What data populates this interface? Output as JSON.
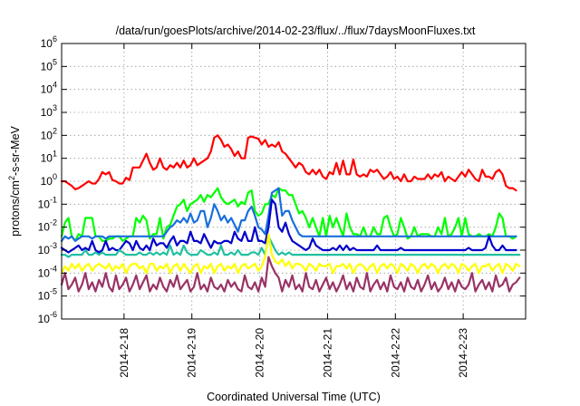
{
  "chart_data": {
    "type": "line",
    "title": "/data/run/goesPlots/archive/2014-02-23/flux/../flux/7daysMoonFluxes.txt",
    "xlabel": "Coordinated Universal Time (UTC)",
    "ylabel": {
      "prefix": "protons/cm",
      "sup": "2",
      "suffix": "-s-sr-MeV"
    },
    "y_scale": "log",
    "ylim_exp": [
      -6,
      6
    ],
    "y_tick_exponents": [
      6,
      5,
      4,
      3,
      2,
      1,
      0,
      -1,
      -2,
      -3,
      -4,
      -5,
      -6
    ],
    "y_tick_base": "10",
    "xlim_days": [
      17.08,
      23.92
    ],
    "x_ticks": [
      {
        "day": 18,
        "label": "2014-2-18"
      },
      {
        "day": 19,
        "label": "2014-2-19"
      },
      {
        "day": 20,
        "label": "2014-2-20"
      },
      {
        "day": 21,
        "label": "2014-2-21"
      },
      {
        "day": 22,
        "label": "2014-2-22"
      },
      {
        "day": 23,
        "label": "2014-2-23"
      }
    ],
    "grid": true,
    "x_unit_note": "x values are day of month, February 2014 (UTC); y values are log10 of flux",
    "series": [
      {
        "color": "#ff0000",
        "x_start": 17.08,
        "x_step": 0.05,
        "log10_y": [
          0.0,
          0.0,
          -0.1,
          -0.2,
          -0.35,
          -0.3,
          -0.2,
          -0.1,
          0.0,
          -0.1,
          -0.1,
          0.1,
          0.4,
          0.3,
          0.4,
          0.05,
          0.0,
          -0.1,
          -0.1,
          0.15,
          0.05,
          0.6,
          0.6,
          0.6,
          0.9,
          1.2,
          0.8,
          0.5,
          0.6,
          1.0,
          0.6,
          0.5,
          0.7,
          0.6,
          0.8,
          0.6,
          0.9,
          0.6,
          0.7,
          1.0,
          0.7,
          0.8,
          0.9,
          1.0,
          1.3,
          1.9,
          2.0,
          1.8,
          1.5,
          1.6,
          1.4,
          1.1,
          1.3,
          1.0,
          1.0,
          1.9,
          1.95,
          1.9,
          1.85,
          1.6,
          1.8,
          1.5,
          1.6,
          1.5,
          1.7,
          1.3,
          1.2,
          1.0,
          0.8,
          0.6,
          0.8,
          0.7,
          0.4,
          0.3,
          0.5,
          0.3,
          0.5,
          0.2,
          0.1,
          0.4,
          0.3,
          0.8,
          0.3,
          0.9,
          0.3,
          0.3,
          0.95,
          0.3,
          0.2,
          0.3,
          0.2,
          0.5,
          0.4,
          0.5,
          0.3,
          0.1,
          0.2,
          0.4,
          0.1,
          0.2,
          0.0,
          0.3,
          0.0,
          0.0,
          0.2,
          0.1,
          0.1,
          0.1,
          0.3,
          0.1,
          0.3,
          0.2,
          0.4,
          0.0,
          0.2,
          0.1,
          0.0,
          0.2,
          0.4,
          0.2,
          0.5,
          0.3,
          0.1,
          0.0,
          0.5,
          0.2,
          0.2,
          0.1,
          0.4,
          0.5,
          0.3,
          -0.2,
          -0.3,
          -0.3,
          -0.4
        ]
      },
      {
        "color": "#00ff00",
        "x_start": 17.08,
        "x_step": 0.05,
        "log10_y": [
          -2.4,
          -1.8,
          -1.6,
          -2.4,
          -2.6,
          -2.3,
          -2.4,
          -1.6,
          -1.6,
          -1.6,
          -2.4,
          -2.4,
          -2.6,
          -2.6,
          -2.5,
          -2.5,
          -2.4,
          -2.4,
          -2.6,
          -2.5,
          -2.4,
          -2.4,
          -1.6,
          -1.8,
          -1.5,
          -1.7,
          -2.5,
          -2.3,
          -2.3,
          -1.6,
          -2.5,
          -2.0,
          -1.9,
          -1.5,
          -1.1,
          -1.0,
          -0.8,
          -1.3,
          -1.0,
          -0.9,
          -0.8,
          -0.6,
          -0.9,
          -0.6,
          -0.7,
          -0.5,
          -0.3,
          -0.7,
          -0.9,
          -1.0,
          -0.9,
          -0.8,
          -1.1,
          -0.9,
          -1.0,
          -0.5,
          -0.4,
          -1.3,
          -1.5,
          -1.4,
          -1.0,
          -1.0,
          -0.6,
          -0.7,
          -0.3,
          -0.4,
          -0.4,
          -0.6,
          -0.6,
          -1.0,
          -1.4,
          -1.3,
          -1.6,
          -2.0,
          -1.6,
          -2.0,
          -2.4,
          -1.6,
          -2.4,
          -1.5,
          -2.0,
          -1.6,
          -2.0,
          -2.4,
          -1.4,
          -2.0,
          -2.3,
          -2.3,
          -2.4,
          -2.0,
          -2.4,
          -2.4,
          -2.0,
          -2.3,
          -2.3,
          -1.6,
          -1.5,
          -2.0,
          -2.4,
          -2.3,
          -1.6,
          -2.0,
          -2.5,
          -2.4,
          -2.0,
          -2.4,
          -2.3,
          -2.3,
          -2.3,
          -2.4,
          -2.4,
          -2.0,
          -2.3,
          -1.6,
          -2.4,
          -2.3,
          -2.0,
          -1.6,
          -2.4,
          -1.6,
          -2.3,
          -2.4,
          -2.4,
          -2.3,
          -2.4,
          -2.4,
          -2.3,
          -2.4,
          -2.0,
          -1.4,
          -1.6,
          -2.4,
          -2.4,
          -2.5,
          -2.4
        ]
      },
      {
        "color": "#1a6fdc",
        "x_start": 17.08,
        "x_step": 0.05,
        "log10_y": [
          -2.6,
          -2.4,
          -2.5,
          -2.4,
          -2.6,
          -2.5,
          -2.4,
          -2.4,
          -2.4,
          -2.5,
          -2.4,
          -2.4,
          -2.4,
          -2.5,
          -2.4,
          -2.4,
          -2.4,
          -2.4,
          -2.4,
          -2.4,
          -2.4,
          -2.4,
          -2.4,
          -2.4,
          -2.4,
          -2.4,
          -2.4,
          -2.4,
          -2.4,
          -2.4,
          -2.4,
          -2.2,
          -2.0,
          -1.9,
          -1.7,
          -1.8,
          -1.6,
          -1.8,
          -1.4,
          -1.8,
          -1.7,
          -1.3,
          -1.3,
          -2.0,
          -1.6,
          -1.0,
          -1.3,
          -1.7,
          -1.5,
          -1.8,
          -1.6,
          -1.9,
          -2.2,
          -1.7,
          -1.7,
          -1.3,
          -1.1,
          -1.5,
          -2.0,
          -2.1,
          -2.3,
          -1.5,
          -0.5,
          -0.4,
          -0.3,
          -1.5,
          -1.3,
          -1.3,
          -1.7,
          -2.0,
          -2.3,
          -2.4,
          -2.4,
          -2.4,
          -2.4,
          -2.4,
          -2.4,
          -2.4,
          -2.4,
          -2.4,
          -2.4,
          -2.4,
          -2.4,
          -2.4,
          -2.4,
          -2.4,
          -2.4,
          -2.4,
          -2.4,
          -2.4,
          -2.4,
          -2.4,
          -2.4,
          -2.4,
          -2.4,
          -2.4,
          -2.4,
          -2.4,
          -2.4,
          -2.4,
          -2.4,
          -2.4,
          -2.4,
          -2.4,
          -2.4,
          -2.4,
          -2.4,
          -2.4,
          -2.4,
          -2.4,
          -2.4,
          -2.4,
          -2.4,
          -2.4,
          -2.4,
          -2.4,
          -2.4,
          -2.4,
          -2.4,
          -2.4,
          -2.4,
          -2.4,
          -2.4,
          -2.4,
          -2.4,
          -2.4,
          -2.4,
          -2.4,
          -2.4,
          -2.4,
          -2.4,
          -2.4,
          -2.4,
          -2.4,
          -2.4
        ]
      },
      {
        "color": "#0000cc",
        "x_start": 17.08,
        "x_step": 0.05,
        "log10_y": [
          -2.9,
          -3.0,
          -3.1,
          -3.0,
          -2.9,
          -2.8,
          -3.0,
          -2.9,
          -3.0,
          -2.6,
          -3.0,
          -3.1,
          -3.0,
          -2.6,
          -3.0,
          -2.9,
          -3.0,
          -3.0,
          -2.8,
          -2.6,
          -2.7,
          -3.0,
          -2.6,
          -2.9,
          -3.0,
          -2.8,
          -3.0,
          -2.5,
          -2.8,
          -2.7,
          -2.7,
          -2.9,
          -2.6,
          -2.4,
          -2.8,
          -2.6,
          -2.6,
          -2.7,
          -2.2,
          -2.6,
          -2.6,
          -2.7,
          -2.3,
          -2.6,
          -2.9,
          -2.6,
          -2.7,
          -2.7,
          -2.6,
          -2.6,
          -2.7,
          -2.2,
          -2.5,
          -2.6,
          -2.2,
          -2.6,
          -2.6,
          -2.0,
          -2.6,
          -2.6,
          -2.7,
          -2.0,
          -0.8,
          -1.0,
          -2.0,
          -2.2,
          -1.8,
          -2.3,
          -2.6,
          -2.7,
          -2.8,
          -2.9,
          -3.0,
          -2.9,
          -2.5,
          -2.8,
          -2.9,
          -3.0,
          -3.0,
          -3.0,
          -2.9,
          -3.0,
          -2.8,
          -3.0,
          -2.8,
          -3.0,
          -2.9,
          -3.0,
          -3.0,
          -3.0,
          -3.0,
          -3.0,
          -3.0,
          -2.8,
          -3.0,
          -3.0,
          -3.0,
          -3.0,
          -3.0,
          -3.0,
          -2.9,
          -3.0,
          -3.0,
          -3.0,
          -3.0,
          -3.0,
          -3.0,
          -3.0,
          -3.0,
          -3.0,
          -3.0,
          -3.0,
          -3.0,
          -3.0,
          -3.0,
          -3.0,
          -3.0,
          -3.0,
          -3.0,
          -3.0,
          -2.9,
          -3.0,
          -3.0,
          -3.0,
          -3.0,
          -2.9,
          -2.4,
          -2.8,
          -3.0,
          -3.0,
          -2.8,
          -3.0,
          -3.0,
          -3.0,
          -3.0
        ]
      },
      {
        "color": "#20c0a0",
        "x_start": 17.08,
        "x_step": 0.05,
        "log10_y": [
          -3.2,
          -3.2,
          -3.3,
          -3.2,
          -3.2,
          -3.2,
          -3.2,
          -3.0,
          -3.2,
          -3.2,
          -3.1,
          -3.2,
          -3.1,
          -3.2,
          -3.2,
          -3.2,
          -3.2,
          -3.0,
          -3.1,
          -3.2,
          -3.2,
          -3.2,
          -3.2,
          -3.1,
          -3.2,
          -3.2,
          -3.1,
          -3.2,
          -3.1,
          -3.2,
          -3.1,
          -3.2,
          -2.8,
          -3.2,
          -3.1,
          -3.2,
          -2.8,
          -3.1,
          -3.2,
          -3.2,
          -3.2,
          -3.0,
          -3.1,
          -3.2,
          -3.2,
          -3.1,
          -3.2,
          -2.8,
          -3.2,
          -3.2,
          -3.1,
          -3.2,
          -3.0,
          -3.2,
          -3.2,
          -3.2,
          -3.1,
          -3.1,
          -3.2,
          -2.9,
          -3.2,
          -2.4,
          -2.7,
          -3.0,
          -3.2,
          -3.1,
          -3.2,
          -3.1,
          -3.2,
          -3.2,
          -3.2,
          -3.2,
          -3.2,
          -3.2,
          -3.2,
          -3.2,
          -3.2,
          -3.2,
          -3.2,
          -3.2,
          -3.2,
          -3.2,
          -3.2,
          -3.2,
          -3.2,
          -3.2,
          -3.2,
          -3.2,
          -3.2,
          -3.2,
          -3.2,
          -3.2,
          -3.2,
          -3.2,
          -3.2,
          -3.2,
          -3.2,
          -3.2,
          -3.2,
          -3.2,
          -3.2,
          -3.2,
          -3.2,
          -3.2,
          -3.2,
          -3.2,
          -3.2,
          -3.2,
          -3.2,
          -3.2,
          -3.2,
          -3.2,
          -3.2,
          -3.2,
          -3.2,
          -3.2,
          -3.2,
          -3.2,
          -3.2,
          -3.2,
          -3.2,
          -3.2,
          -3.2,
          -3.2,
          -3.2,
          -3.2,
          -3.2,
          -3.2,
          -3.2,
          -3.2,
          -3.2,
          -3.2,
          -3.2,
          -3.2,
          -3.2,
          -3.2
        ]
      },
      {
        "color": "#ffff00",
        "x_start": 17.08,
        "x_step": 0.05,
        "log10_y": [
          -4.0,
          -3.7,
          -3.9,
          -3.6,
          -3.8,
          -3.6,
          -3.9,
          -3.7,
          -3.6,
          -3.9,
          -3.7,
          -3.6,
          -3.7,
          -3.8,
          -3.6,
          -3.9,
          -3.7,
          -3.8,
          -3.6,
          -4.0,
          -3.7,
          -3.6,
          -3.6,
          -3.8,
          -3.7,
          -4.0,
          -3.6,
          -3.6,
          -3.9,
          -3.7,
          -3.8,
          -3.6,
          -4.0,
          -3.7,
          -3.6,
          -3.9,
          -3.6,
          -3.8,
          -4.0,
          -3.7,
          -3.6,
          -4.0,
          -3.7,
          -3.8,
          -3.6,
          -4.0,
          -3.7,
          -3.6,
          -3.9,
          -3.7,
          -3.8,
          -3.6,
          -4.0,
          -3.7,
          -3.6,
          -3.8,
          -3.7,
          -3.6,
          -3.9,
          -3.7,
          -3.3,
          -2.3,
          -3.2,
          -3.5,
          -3.6,
          -3.4,
          -3.7,
          -3.5,
          -3.8,
          -3.6,
          -3.6,
          -3.7,
          -3.9,
          -3.6,
          -3.7,
          -3.9,
          -3.6,
          -3.7,
          -3.7,
          -3.6,
          -4.0,
          -3.7,
          -3.7,
          -3.6,
          -3.8,
          -3.6,
          -4.0,
          -3.7,
          -3.6,
          -3.7,
          -3.9,
          -3.7,
          -3.6,
          -4.0,
          -3.7,
          -3.6,
          -3.8,
          -3.6,
          -3.7,
          -4.0,
          -3.6,
          -3.7,
          -3.9,
          -3.6,
          -3.7,
          -4.0,
          -3.7,
          -3.6,
          -3.8,
          -3.6,
          -3.7,
          -4.0,
          -3.7,
          -3.6,
          -3.8,
          -3.6,
          -3.7,
          -4.0,
          -3.6,
          -3.7,
          -3.9,
          -3.7,
          -3.6,
          -4.0,
          -3.7,
          -3.7,
          -3.6,
          -3.9,
          -3.7,
          -3.6,
          -4.0,
          -3.6,
          -3.7,
          -3.9,
          -3.6,
          -3.7
        ]
      },
      {
        "color": "#993366",
        "x_start": 17.08,
        "x_step": 0.05,
        "log10_y": [
          -4.5,
          -4.0,
          -4.7,
          -4.5,
          -4.2,
          -4.8,
          -4.5,
          -4.0,
          -4.7,
          -4.4,
          -4.8,
          -4.3,
          -4.6,
          -4.0,
          -4.6,
          -4.8,
          -4.1,
          -4.7,
          -4.5,
          -4.2,
          -4.8,
          -4.5,
          -4.1,
          -4.7,
          -4.4,
          -4.1,
          -4.8,
          -4.5,
          -4.7,
          -4.2,
          -4.6,
          -4.8,
          -4.3,
          -4.6,
          -4.1,
          -4.7,
          -4.5,
          -4.3,
          -4.8,
          -4.6,
          -4.0,
          -4.7,
          -4.5,
          -4.8,
          -4.2,
          -4.6,
          -4.7,
          -4.5,
          -4.8,
          -4.3,
          -4.6,
          -4.4,
          -4.7,
          -4.8,
          -4.1,
          -4.6,
          -4.7,
          -4.4,
          -4.8,
          -4.2,
          -4.6,
          -3.3,
          -3.7,
          -4.0,
          -4.2,
          -4.8,
          -4.3,
          -4.6,
          -4.1,
          -4.7,
          -4.5,
          -4.8,
          -4.0,
          -4.6,
          -4.7,
          -4.3,
          -4.8,
          -4.5,
          -4.2,
          -4.7,
          -4.4,
          -4.8,
          -4.5,
          -4.1,
          -4.7,
          -4.4,
          -4.8,
          -4.2,
          -4.6,
          -4.7,
          -4.0,
          -4.8,
          -4.5,
          -4.3,
          -4.7,
          -4.4,
          -4.8,
          -4.1,
          -4.6,
          -4.7,
          -4.4,
          -4.8,
          -4.2,
          -4.6,
          -4.7,
          -4.3,
          -4.8,
          -4.5,
          -4.1,
          -4.7,
          -4.4,
          -4.8,
          -4.6,
          -4.2,
          -4.7,
          -4.4,
          -4.8,
          -4.3,
          -4.6,
          -4.7,
          -4.5,
          -4.0,
          -4.8,
          -4.5,
          -4.3,
          -4.7,
          -4.4,
          -4.8,
          -4.1,
          -4.6,
          -4.5,
          -4.2,
          -4.8,
          -4.5,
          -4.4,
          -4.2
        ]
      }
    ]
  }
}
